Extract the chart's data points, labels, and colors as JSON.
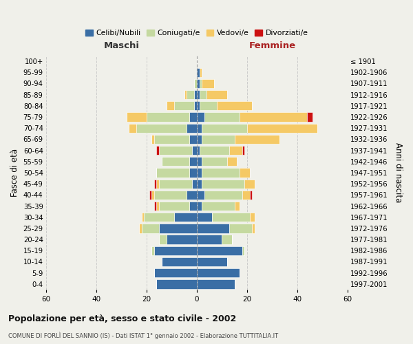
{
  "age_groups": [
    "0-4",
    "5-9",
    "10-14",
    "15-19",
    "20-24",
    "25-29",
    "30-34",
    "35-39",
    "40-44",
    "45-49",
    "50-54",
    "55-59",
    "60-64",
    "65-69",
    "70-74",
    "75-79",
    "80-84",
    "85-89",
    "90-94",
    "95-99",
    "100+"
  ],
  "birth_years": [
    "1997-2001",
    "1992-1996",
    "1987-1991",
    "1982-1986",
    "1977-1981",
    "1972-1976",
    "1967-1971",
    "1962-1966",
    "1957-1961",
    "1952-1956",
    "1947-1951",
    "1942-1946",
    "1937-1941",
    "1932-1936",
    "1927-1931",
    "1922-1926",
    "1917-1921",
    "1912-1916",
    "1907-1911",
    "1902-1906",
    "≤ 1901"
  ],
  "maschi": {
    "celibi": [
      16,
      17,
      14,
      17,
      12,
      15,
      9,
      3,
      4,
      2,
      3,
      3,
      2,
      3,
      4,
      3,
      1,
      1,
      0,
      0,
      0
    ],
    "coniugati": [
      0,
      0,
      0,
      1,
      3,
      7,
      12,
      12,
      13,
      13,
      13,
      11,
      13,
      14,
      20,
      17,
      8,
      3,
      1,
      0,
      0
    ],
    "vedovi": [
      0,
      0,
      0,
      0,
      0,
      1,
      1,
      1,
      1,
      1,
      0,
      0,
      0,
      1,
      3,
      8,
      3,
      1,
      0,
      0,
      0
    ],
    "divorziati": [
      0,
      0,
      0,
      0,
      0,
      0,
      0,
      1,
      1,
      1,
      0,
      0,
      1,
      0,
      0,
      0,
      0,
      0,
      0,
      0,
      0
    ]
  },
  "femmine": {
    "celibi": [
      15,
      17,
      12,
      18,
      10,
      13,
      6,
      2,
      3,
      2,
      2,
      2,
      1,
      2,
      2,
      3,
      1,
      1,
      1,
      1,
      0
    ],
    "coniugati": [
      0,
      0,
      0,
      1,
      4,
      9,
      15,
      13,
      15,
      17,
      15,
      10,
      12,
      13,
      18,
      14,
      7,
      3,
      1,
      0,
      0
    ],
    "vedovi": [
      0,
      0,
      0,
      0,
      0,
      1,
      2,
      2,
      3,
      4,
      4,
      4,
      5,
      18,
      28,
      27,
      14,
      8,
      5,
      1,
      0
    ],
    "divorziati": [
      0,
      0,
      0,
      0,
      0,
      0,
      0,
      0,
      1,
      0,
      0,
      0,
      1,
      0,
      0,
      2,
      0,
      0,
      0,
      0,
      0
    ]
  },
  "colors": {
    "celibi": "#3a6ea5",
    "coniugati": "#c5d9a0",
    "vedovi": "#f5c965",
    "divorziati": "#cc1111"
  },
  "xlim": 60,
  "title": "Popolazione per età, sesso e stato civile - 2002",
  "subtitle": "COMUNE DI FORLÌ DEL SANNIO (IS) - Dati ISTAT 1° gennaio 2002 - Elaborazione TUTTITALIA.IT",
  "ylabel_left": "Fasce di età",
  "ylabel_right": "Anni di nascita",
  "label_maschi": "Maschi",
  "label_femmine": "Femmine",
  "legend_labels": [
    "Celibi/Nubili",
    "Coniugati/e",
    "Vedovi/e",
    "Divorziati/e"
  ],
  "bg_color": "#f0f0ea",
  "maschi_label_color": "#333333",
  "femmine_label_color": "#aa2222",
  "grid_color": "#cccccc",
  "spine_color": "#999999"
}
